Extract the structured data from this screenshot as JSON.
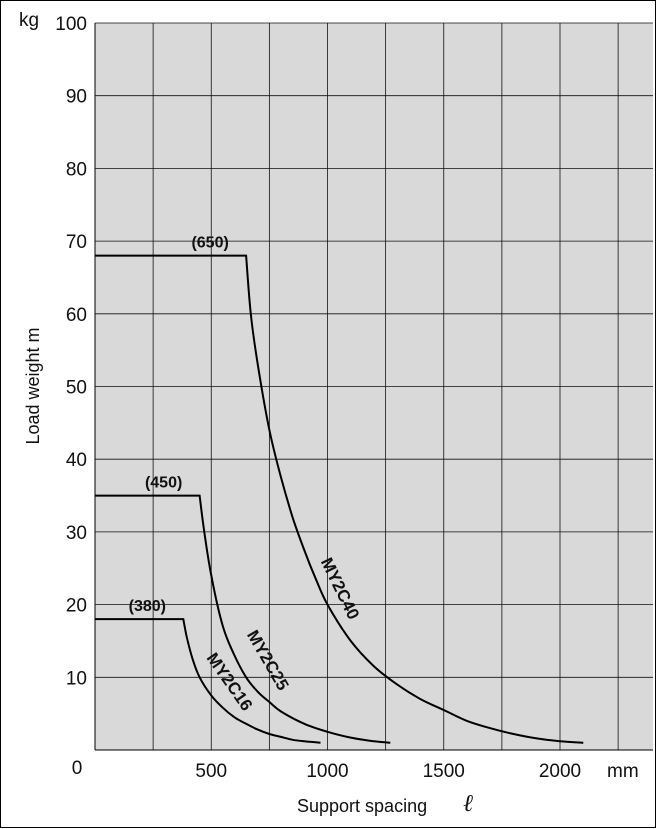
{
  "chart_data": {
    "type": "line",
    "title": "",
    "xlabel": "Support spacing",
    "xlabel_symbol": "ℓ",
    "ylabel": "Load weight  m",
    "x_unit": "mm",
    "y_unit": "kg",
    "xlim": [
      0,
      2400
    ],
    "ylim": [
      0,
      100
    ],
    "x_ticks": [
      "0",
      "500",
      "1000",
      "1500",
      "2000"
    ],
    "y_ticks": [
      "10",
      "20",
      "30",
      "40",
      "50",
      "60",
      "70",
      "80",
      "90",
      "100"
    ],
    "grid": true,
    "background_color": "#d9d9d9",
    "line_color": "#000000",
    "series": [
      {
        "name": "MY2C40",
        "annotation": "(650)",
        "x": [
          0,
          650,
          670,
          700,
          750,
          800,
          850,
          900,
          950,
          1000,
          1100,
          1200,
          1300,
          1400,
          1500,
          1600,
          1700,
          1800,
          1900,
          2000,
          2100
        ],
        "y": [
          68,
          68,
          60,
          53,
          44,
          37.5,
          32,
          27.5,
          23.5,
          20,
          15,
          11.5,
          9,
          7,
          5.5,
          4,
          3,
          2.2,
          1.6,
          1.2,
          1
        ]
      },
      {
        "name": "MY2C25",
        "annotation": "(450)",
        "x": [
          0,
          450,
          470,
          500,
          550,
          600,
          650,
          700,
          750,
          800,
          900,
          1000,
          1100,
          1200,
          1270
        ],
        "y": [
          35,
          35,
          30,
          24,
          17,
          13,
          10,
          8,
          6.6,
          5.3,
          3.6,
          2.5,
          1.7,
          1.2,
          1
        ]
      },
      {
        "name": "MY2C16",
        "annotation": "(380)",
        "x": [
          0,
          380,
          395,
          420,
          450,
          500,
          550,
          600,
          650,
          700,
          750,
          800,
          850,
          900,
          970
        ],
        "y": [
          18,
          18,
          15.5,
          12.5,
          10,
          7.5,
          5.8,
          4.5,
          3.6,
          2.8,
          2.2,
          1.8,
          1.4,
          1.2,
          1
        ]
      }
    ]
  }
}
